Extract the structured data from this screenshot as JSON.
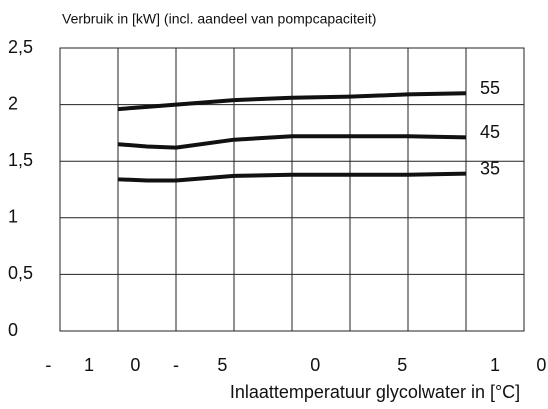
{
  "chart_data": {
    "type": "line",
    "title": "Verbruik in [kW] (incl. aandeel van pompcapaciteit)",
    "x_label": "Inlaattemperatuur glycolwater in [°C]",
    "x": [
      -15,
      -12.5,
      -10,
      -5,
      0,
      5,
      10,
      15
    ],
    "series": [
      {
        "name": "55",
        "color": "#111111",
        "values": [
          1.96,
          1.98,
          2.0,
          2.04,
          2.06,
          2.07,
          2.09,
          2.1
        ]
      },
      {
        "name": "45",
        "color": "#111111",
        "values": [
          1.65,
          1.63,
          1.62,
          1.69,
          1.72,
          1.72,
          1.72,
          1.71
        ]
      },
      {
        "name": "35",
        "color": "#111111",
        "values": [
          1.34,
          1.33,
          1.33,
          1.37,
          1.38,
          1.38,
          1.38,
          1.39
        ]
      }
    ],
    "xlim": [
      -20,
      20
    ],
    "xgrid": [
      -15,
      -10,
      -5,
      0,
      5,
      10,
      15
    ],
    "xticks": [
      {
        "value": -21,
        "label": "-"
      },
      {
        "value": -17.5,
        "label": "1"
      },
      {
        "value": -13.5,
        "label": "0"
      },
      {
        "value": -10,
        "label": "-"
      },
      {
        "value": -6,
        "label": "5"
      },
      {
        "value": 2,
        "label": "0"
      },
      {
        "value": 9.5,
        "label": "5"
      },
      {
        "value": 17.5,
        "label": "1"
      },
      {
        "value": 21.5,
        "label": "0"
      }
    ],
    "ylim": [
      0,
      2.5
    ],
    "yticks": [
      0,
      {
        "value": 0.5,
        "label": "0,5"
      },
      1,
      {
        "value": 1.5,
        "label": "1,5"
      },
      2,
      {
        "value": 2.5,
        "label": "2,5"
      }
    ],
    "grid": true
  }
}
